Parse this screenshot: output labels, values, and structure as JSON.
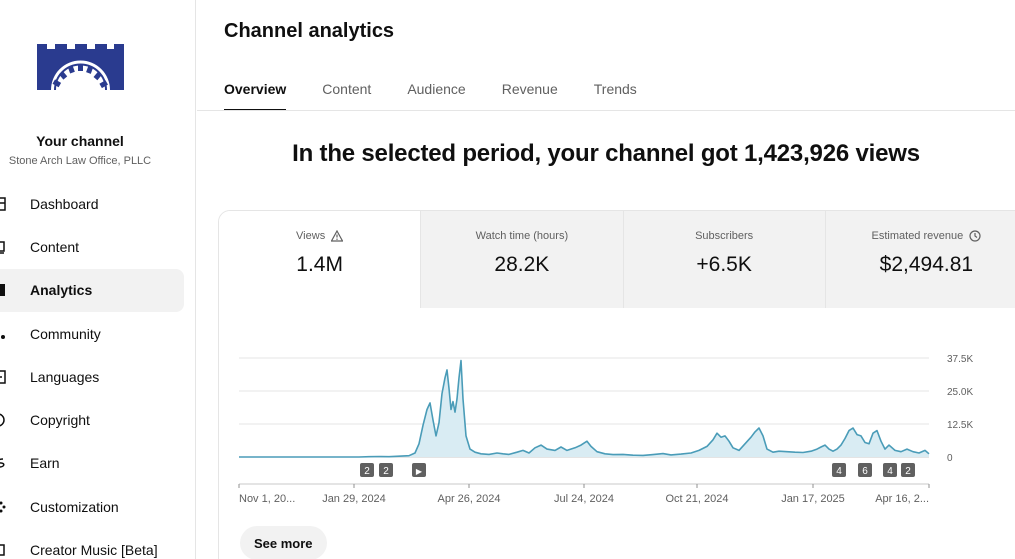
{
  "sidebar": {
    "channel_title": "Your channel",
    "channel_subtitle": "Stone Arch Law Office, PLLC",
    "items": [
      {
        "label": "Dashboard",
        "icon": "dashboard-icon"
      },
      {
        "label": "Content",
        "icon": "content-icon"
      },
      {
        "label": "Analytics",
        "icon": "analytics-icon",
        "active": true
      },
      {
        "label": "Community",
        "icon": "community-icon"
      },
      {
        "label": "Languages",
        "icon": "languages-icon"
      },
      {
        "label": "Copyright",
        "icon": "copyright-icon"
      },
      {
        "label": "Earn",
        "icon": "earn-icon"
      },
      {
        "label": "Customization",
        "icon": "customization-icon"
      },
      {
        "label": "Creator Music [Beta]",
        "icon": "music-icon"
      }
    ],
    "logo_color": "#2a3b8f"
  },
  "main": {
    "title": "Channel analytics",
    "tabs": [
      {
        "label": "Overview",
        "active": true
      },
      {
        "label": "Content"
      },
      {
        "label": "Audience"
      },
      {
        "label": "Revenue"
      },
      {
        "label": "Trends"
      }
    ],
    "headline": "In the selected period, your channel got 1,423,926 views",
    "metrics": [
      {
        "label": "Views",
        "value": "1.4M",
        "icon": "warning-icon"
      },
      {
        "label": "Watch time (hours)",
        "value": "28.2K"
      },
      {
        "label": "Subscribers",
        "value": "+6.5K"
      },
      {
        "label": "Estimated revenue",
        "value": "$2,494.81",
        "icon": "clock-icon"
      }
    ],
    "see_more_label": "See more"
  },
  "chart_data": {
    "type": "area",
    "series": [
      {
        "values": [
          [
            0,
            0
          ],
          [
            12,
            0
          ],
          [
            24,
            0
          ],
          [
            36,
            0
          ],
          [
            48,
            0
          ],
          [
            60,
            0
          ],
          [
            72,
            0
          ],
          [
            84,
            0
          ],
          [
            96,
            0
          ],
          [
            108,
            0
          ],
          [
            120,
            0
          ],
          [
            130,
            100
          ],
          [
            140,
            200
          ],
          [
            150,
            100
          ],
          [
            160,
            300
          ],
          [
            170,
            500
          ],
          [
            176,
            1500
          ],
          [
            180,
            5000
          ],
          [
            184,
            12000
          ],
          [
            188,
            18000
          ],
          [
            191,
            20500
          ],
          [
            194,
            14000
          ],
          [
            197,
            8000
          ],
          [
            200,
            13000
          ],
          [
            203,
            24000
          ],
          [
            206,
            30000
          ],
          [
            208,
            33000
          ],
          [
            210,
            26000
          ],
          [
            212,
            18000
          ],
          [
            214,
            21000
          ],
          [
            216,
            17000
          ],
          [
            218,
            22000
          ],
          [
            220,
            30000
          ],
          [
            222,
            36500
          ],
          [
            224,
            22000
          ],
          [
            227,
            8000
          ],
          [
            231,
            3000
          ],
          [
            236,
            1800
          ],
          [
            242,
            1200
          ],
          [
            250,
            1000
          ],
          [
            258,
            1500
          ],
          [
            264,
            1200
          ],
          [
            270,
            1000
          ],
          [
            278,
            1800
          ],
          [
            284,
            2500
          ],
          [
            290,
            1500
          ],
          [
            296,
            3500
          ],
          [
            302,
            4500
          ],
          [
            308,
            3000
          ],
          [
            316,
            2500
          ],
          [
            322,
            3800
          ],
          [
            328,
            2500
          ],
          [
            336,
            3500
          ],
          [
            342,
            4500
          ],
          [
            348,
            6000
          ],
          [
            352,
            4000
          ],
          [
            358,
            2000
          ],
          [
            366,
            1200
          ],
          [
            374,
            900
          ],
          [
            384,
            1000
          ],
          [
            394,
            700
          ],
          [
            404,
            600
          ],
          [
            414,
            900
          ],
          [
            424,
            1300
          ],
          [
            432,
            800
          ],
          [
            442,
            1100
          ],
          [
            452,
            1500
          ],
          [
            460,
            2500
          ],
          [
            468,
            4000
          ],
          [
            474,
            6500
          ],
          [
            478,
            9000
          ],
          [
            482,
            7500
          ],
          [
            486,
            8000
          ],
          [
            490,
            6000
          ],
          [
            494,
            3500
          ],
          [
            500,
            2500
          ],
          [
            506,
            5000
          ],
          [
            512,
            7500
          ],
          [
            516,
            9500
          ],
          [
            520,
            11000
          ],
          [
            524,
            8000
          ],
          [
            528,
            3000
          ],
          [
            534,
            1800
          ],
          [
            540,
            2200
          ],
          [
            548,
            2000
          ],
          [
            556,
            1800
          ],
          [
            564,
            1700
          ],
          [
            572,
            2200
          ],
          [
            578,
            3000
          ],
          [
            582,
            3800
          ],
          [
            586,
            4500
          ],
          [
            590,
            3000
          ],
          [
            594,
            2200
          ],
          [
            598,
            3000
          ],
          [
            602,
            4500
          ],
          [
            606,
            7000
          ],
          [
            610,
            10000
          ],
          [
            614,
            11000
          ],
          [
            618,
            8500
          ],
          [
            622,
            8000
          ],
          [
            626,
            5500
          ],
          [
            630,
            5000
          ],
          [
            634,
            9000
          ],
          [
            638,
            10000
          ],
          [
            642,
            6000
          ],
          [
            646,
            3000
          ],
          [
            650,
            4500
          ],
          [
            656,
            2500
          ],
          [
            662,
            2000
          ],
          [
            668,
            3000
          ],
          [
            674,
            2000
          ],
          [
            680,
            1500
          ],
          [
            686,
            2500
          ],
          [
            690,
            1200
          ]
        ]
      }
    ],
    "x_tick_labels": [
      "Nov 1, 20...",
      "Jan 29, 2024",
      "Apr 26, 2024",
      "Jul 24, 2024",
      "Oct 21, 2024",
      "Jan 17, 2025",
      "Apr 16, 2..."
    ],
    "y_tick_labels": [
      "37.5K",
      "25.0K",
      "12.5K",
      "0"
    ],
    "y_ticks": [
      37500,
      25000,
      12500,
      0
    ],
    "ylim": [
      0,
      37500
    ],
    "x_tick_positions": [
      0,
      115,
      230,
      345,
      458,
      574,
      690
    ],
    "markers": [
      {
        "label": "2",
        "x": 128
      },
      {
        "label": "2",
        "x": 147
      },
      {
        "label": "▶",
        "x": 180
      },
      {
        "label": "4",
        "x": 600
      },
      {
        "label": "6",
        "x": 626
      },
      {
        "label": "4",
        "x": 651
      },
      {
        "label": "2",
        "x": 669
      }
    ],
    "line_color": "#4a9cb8",
    "fill_color": "#d9ecf3",
    "grid": true
  }
}
